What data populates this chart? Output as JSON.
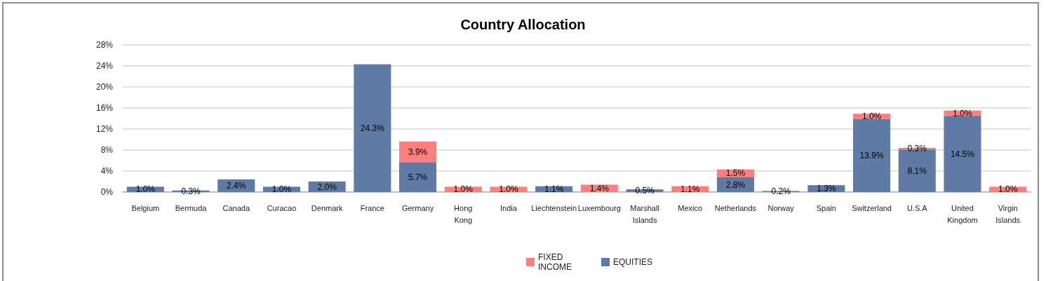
{
  "chart_data": {
    "type": "bar",
    "title": "Country Allocation",
    "categories": [
      "Belgium",
      "Bermuda",
      "Canada",
      "Curacao",
      "Denmark",
      "France",
      "Germany",
      "Hong Kong",
      "India",
      "Liechtenstein",
      "Luxembourg",
      "Marshall Islands",
      "Mexico",
      "Netherlands",
      "Norway",
      "Spain",
      "Switzerland",
      "U.S.A",
      "United Kingdom",
      "Virgin Islands"
    ],
    "series": [
      {
        "name": "EQUITIES",
        "color": "#5f7aa5",
        "values": [
          1.0,
          0.3,
          2.4,
          1.0,
          2.0,
          24.3,
          5.7,
          null,
          null,
          1.1,
          null,
          0.5,
          null,
          2.8,
          0.2,
          1.3,
          13.9,
          8.1,
          14.5,
          null
        ],
        "value_labels": [
          "1.0%",
          "0.3%",
          "2.4%",
          "1.0%",
          "2.0%",
          "24.3%",
          "5.7%",
          null,
          null,
          "1.1%",
          null,
          "0.5%",
          null,
          "2.8%",
          "0.2%",
          "1.3%",
          "13.9%",
          "8.1%",
          "14.5%",
          null
        ]
      },
      {
        "name": "FIXED INCOME",
        "color": "#ff7f7f",
        "values": [
          null,
          null,
          null,
          null,
          null,
          null,
          3.9,
          1.0,
          1.0,
          null,
          1.4,
          null,
          1.1,
          1.5,
          null,
          null,
          1.0,
          0.3,
          1.0,
          1.0
        ],
        "value_labels": [
          null,
          null,
          null,
          null,
          null,
          null,
          "3.9%",
          "1.0%",
          "1.0%",
          null,
          "1.4%",
          null,
          "1.1%",
          "1.5%",
          null,
          null,
          "1.0%",
          "0.3%",
          "1.0%",
          "1.0%"
        ]
      }
    ],
    "stacked": true,
    "ylim": [
      0,
      28
    ],
    "yticks": [
      {
        "value": 0,
        "label": "0%"
      },
      {
        "value": 4,
        "label": "4%"
      },
      {
        "value": 8,
        "label": "8%"
      },
      {
        "value": 12,
        "label": "12%"
      },
      {
        "value": 16,
        "label": "16%"
      },
      {
        "value": 20,
        "label": "20%"
      },
      {
        "value": 24,
        "label": "24%"
      },
      {
        "value": 28,
        "label": "28%"
      }
    ],
    "grid": "y",
    "legend": "bottom"
  }
}
